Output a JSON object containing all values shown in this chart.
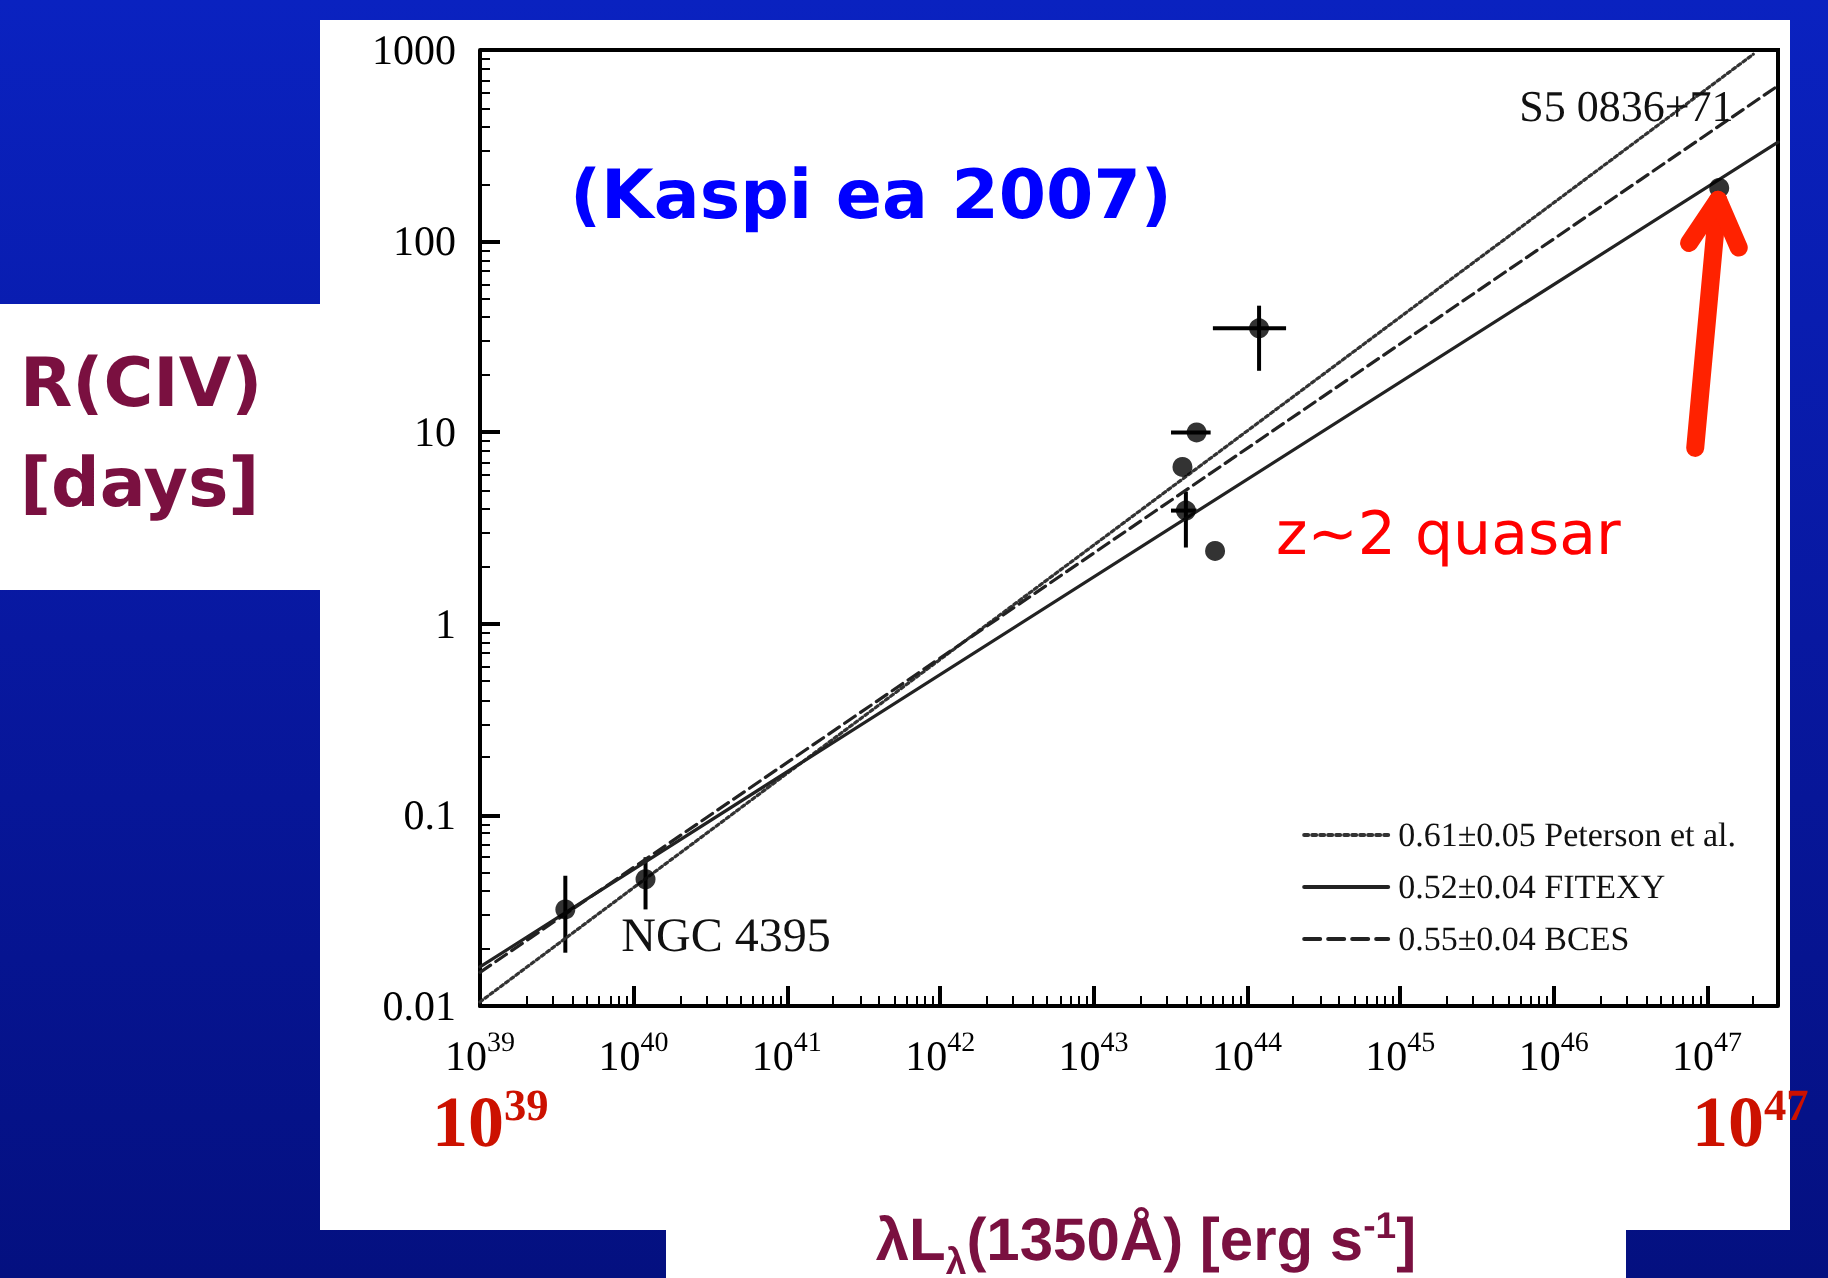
{
  "chart_data": {
    "type": "scatter",
    "xlabel": "λL$_{λ}$(1350Å) [erg s$^{-1}$]",
    "ylabel": "R(CIV) [days]",
    "log": "xy",
    "grid": false,
    "legend": "bottom right",
    "marker": "circle",
    "xlim": [
      1e+39,
      2.9e+47
    ],
    "ylim": [
      0.01,
      1000
    ],
    "xticks": [
      {
        "value": 1e+39,
        "label": "10$^{39}$"
      },
      {
        "value": 1e+40,
        "label": "10$^{40}$"
      },
      {
        "value": 1e+41,
        "label": "10$^{41}$"
      },
      {
        "value": 1e+42,
        "label": "10$^{42}$"
      },
      {
        "value": 1e+43,
        "label": "10$^{43}$"
      },
      {
        "value": 1e+44,
        "label": "10$^{44}$"
      },
      {
        "value": 1e+45,
        "label": "10$^{45}$"
      },
      {
        "value": 1e+46,
        "label": "10$^{46}$"
      },
      {
        "value": 1e+47,
        "label": "10$^{47}$"
      }
    ],
    "yticks": [
      0.01,
      0.1,
      1,
      10,
      100,
      1000
    ],
    "series": [
      {
        "color": "#000000",
        "x": [
          3.6e+39,
          1.2e+40,
          3.8e+43,
          4e+43,
          4.7e+43,
          6.2e+43,
          1.2e+44,
          1.2e+47
        ],
        "values": [
          0.032,
          0.046,
          6.6,
          3.9,
          10,
          2.4,
          35,
          190
        ],
        "errors": [
          [
            0.019,
            0.048
          ],
          [
            0.032,
            0.06
          ],
          null,
          [
            2.5,
            4.9
          ],
          null,
          null,
          [
            21,
            46
          ],
          null
        ],
        "xerrors": [
          null,
          null,
          null,
          [
            3.2e+43,
            4.7e+43
          ],
          [
            3.2e+43,
            5.8e+43
          ],
          null,
          [
            6e+43,
            1.8e+44
          ],
          null
        ]
      },
      {
        "type": "line",
        "name": "0.61±0.05 Peterson et al.",
        "color": "#333333",
        "line_style": "dotted",
        "marker": "none",
        "x": [
          1e+39,
          2e+47
        ],
        "values": [
          0.0105,
          950
        ]
      },
      {
        "type": "line",
        "name": "0.52±0.04 FITEXY",
        "color": "#222222",
        "line_style": "solid",
        "marker": "none",
        "x": [
          1e+39,
          2.9e+47
        ],
        "values": [
          0.016,
          330
        ]
      },
      {
        "type": "line",
        "name": "0.55±0.04 BCES",
        "color": "#222222",
        "line_style": "dashed",
        "marker": "none",
        "x": [
          1e+39,
          2.9e+47
        ],
        "values": [
          0.015,
          650
        ]
      }
    ],
    "annotations": [
      "(Kaspi ea 2007)",
      "10$^{39}$",
      "10$^{47}$",
      "z~2 quasar",
      {
        "text": "S5 0836+71",
        "x": 1.2e+47,
        "y": 190
      },
      {
        "text": "NGC 4395",
        "x": 3.6e+39,
        "y": 0.032
      }
    ]
  }
}
